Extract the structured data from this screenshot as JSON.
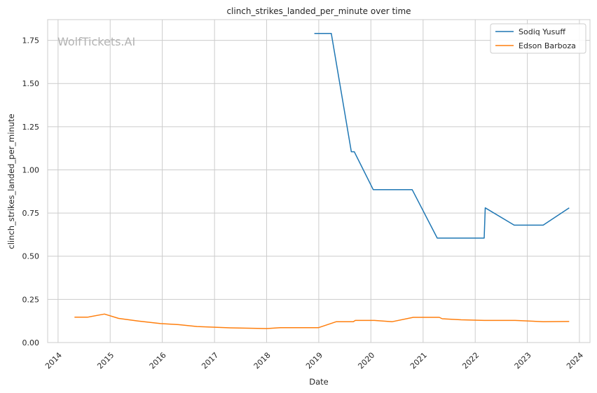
{
  "chart_data": {
    "type": "line",
    "title": "clinch_strikes_landed_per_minute over time",
    "xlabel": "Date",
    "ylabel": "clinch_strikes_landed_per_minute",
    "watermark": "WolfTickets.AI",
    "x_ticks": [
      "2014",
      "2015",
      "2016",
      "2017",
      "2018",
      "2019",
      "2020",
      "2021",
      "2022",
      "2023",
      "2024"
    ],
    "y_ticks": [
      "0.00",
      "0.25",
      "0.50",
      "0.75",
      "1.00",
      "1.25",
      "1.50",
      "1.75"
    ],
    "xlim": [
      "2013-10-20",
      "2024-03-15"
    ],
    "ylim": [
      0,
      1.87
    ],
    "grid": true,
    "legend_position": "top-right",
    "series": [
      {
        "name": "Sodiq Yusuff",
        "color": "#1f77b4",
        "points": [
          [
            "2018-12-01",
            1.79
          ],
          [
            "2019-03-30",
            1.79
          ],
          [
            "2019-08-17",
            1.105
          ],
          [
            "2019-09-07",
            1.105
          ],
          [
            "2020-01-18",
            0.885
          ],
          [
            "2020-10-17",
            0.885
          ],
          [
            "2021-04-10",
            0.605
          ],
          [
            "2022-03-05",
            0.605
          ],
          [
            "2022-03-12",
            0.78
          ],
          [
            "2022-10-01",
            0.68
          ],
          [
            "2023-04-22",
            0.68
          ],
          [
            "2023-10-21",
            0.78
          ]
        ]
      },
      {
        "name": "Edson Barboza",
        "color": "#ff7f0e",
        "points": [
          [
            "2014-04-26",
            0.147
          ],
          [
            "2014-07-26",
            0.147
          ],
          [
            "2014-11-22",
            0.165
          ],
          [
            "2015-03-01",
            0.14
          ],
          [
            "2015-07-15",
            0.125
          ],
          [
            "2015-12-19",
            0.11
          ],
          [
            "2016-04-23",
            0.104
          ],
          [
            "2016-09-01",
            0.093
          ],
          [
            "2017-04-22",
            0.085
          ],
          [
            "2017-12-30",
            0.081
          ],
          [
            "2018-04-07",
            0.086
          ],
          [
            "2018-12-29",
            0.086
          ],
          [
            "2019-05-04",
            0.121
          ],
          [
            "2019-08-31",
            0.121
          ],
          [
            "2019-09-14",
            0.128
          ],
          [
            "2020-01-25",
            0.128
          ],
          [
            "2020-05-30",
            0.121
          ],
          [
            "2020-10-24",
            0.146
          ],
          [
            "2021-04-24",
            0.146
          ],
          [
            "2021-05-15",
            0.138
          ],
          [
            "2021-09-25",
            0.132
          ],
          [
            "2022-03-05",
            0.128
          ],
          [
            "2022-10-08",
            0.128
          ],
          [
            "2023-04-22",
            0.121
          ],
          [
            "2023-10-21",
            0.122
          ]
        ]
      }
    ]
  }
}
